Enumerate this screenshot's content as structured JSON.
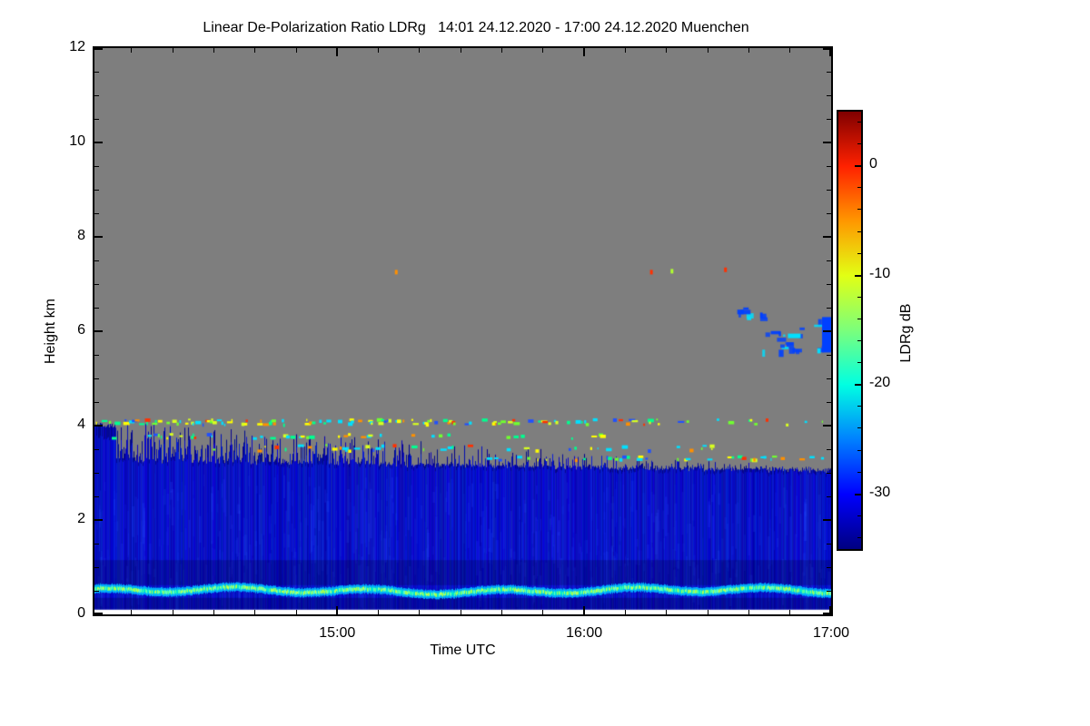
{
  "chart_data": {
    "type": "heatmap",
    "title": "Linear De-Polarization Ratio LDRg   14:01 24.12.2020 - 17:00 24.12.2020 Muenchen",
    "xlabel": "Time UTC",
    "ylabel": "Height km",
    "x_axis": {
      "start": "14:01",
      "end": "17:00",
      "duration_min": 179,
      "major_tick_labels": [
        "15:00",
        "16:00",
        "17:00"
      ],
      "major_tick_min": [
        59,
        119,
        179
      ],
      "minor_tick_every_min": 10,
      "minor_tick_offset_min": 9
    },
    "y_axis": {
      "min": 0,
      "max": 12,
      "major_step": 2,
      "minor_step": 0.5,
      "tick_labels": [
        "0",
        "2",
        "4",
        "6",
        "8",
        "10",
        "12"
      ]
    },
    "colorbar": {
      "label": "LDRg dB",
      "min": -35,
      "max": 5,
      "tick_values": [
        0,
        -10,
        -20,
        -30
      ],
      "tick_labels": [
        "0",
        "-10",
        "-20",
        "-30"
      ],
      "minor_step": 2,
      "gradient_top_to_bottom": [
        "#800000",
        "#ff2100",
        "#ff9700",
        "#e2ff14",
        "#7bff7b",
        "#00ffe2",
        "#0080ff",
        "#0000ff",
        "#000080"
      ]
    },
    "no_data_color": "#7e7e7e",
    "below_range_color": "#ffffff",
    "seed": 1337,
    "features": {
      "cloud_layer": {
        "base_km": 0.1,
        "solid_top_start_km": 3.25,
        "solid_top_end_km": 3.02,
        "spike_top_start_km": 4.12,
        "spike_top_end_km": 3.1,
        "spike_density_start": 0.95,
        "spike_density_end": 0.18,
        "body_color": "#0000c8",
        "streak_color": "#2850ff",
        "dark_color": "#00005a"
      },
      "surface_layer": {
        "center_km": 0.5,
        "thickness_km": 0.18,
        "edge_color": "#00b4ff",
        "core_colors": [
          "#00e8d0",
          "#50ffa0",
          "#a0ff50",
          "#60ffc0"
        ],
        "hot_color": "#c8ff50",
        "waviness_km": 0.05
      },
      "speckle_bands": [
        {
          "h_km": 4.1,
          "jitter_km": 0.06,
          "t0": 0,
          "t1": 179,
          "density": [
            0.8,
            0.2
          ]
        },
        {
          "h_km": 3.8,
          "jitter_km": 0.05,
          "t0": 0,
          "t1": 125,
          "density": [
            0.35,
            0.15
          ]
        },
        {
          "h_km": 3.55,
          "jitter_km": 0.06,
          "t0": 20,
          "t1": 150,
          "density": [
            0.3,
            0.3
          ]
        },
        {
          "h_km": 3.33,
          "jitter_km": 0.04,
          "t0": 95,
          "t1": 179,
          "density": [
            0.5,
            0.35
          ]
        }
      ],
      "speckle_palette": [
        "#00e0ff",
        "#00ff90",
        "#70ff30",
        "#d8ff20",
        "#ffff00",
        "#ff9000",
        "#ff3000",
        "#2050ff"
      ],
      "speckle_weights": [
        0.25,
        0.14,
        0.12,
        0.12,
        0.12,
        0.08,
        0.06,
        0.11
      ],
      "high_specks": [
        {
          "t_min": 73,
          "h_km": 7.3,
          "color": "#ff9000"
        },
        {
          "t_min": 135,
          "h_km": 7.3,
          "color": "#ff3000"
        },
        {
          "t_min": 140,
          "h_km": 7.32,
          "color": "#b0ff30"
        },
        {
          "t_min": 153,
          "h_km": 7.35,
          "color": "#ff3000"
        }
      ],
      "detached_cloud": {
        "main_color": "#0040ff",
        "core_color": "#00e0ff",
        "blob_count": 30,
        "clusters": [
          {
            "t0": 162,
            "t1": 172,
            "h0": 5.6,
            "h1": 6.1,
            "weight": 0.55
          },
          {
            "t0": 155,
            "t1": 163,
            "h0": 6.2,
            "h1": 6.55,
            "weight": 0.25
          },
          {
            "t0": 174,
            "t1": 179,
            "h0": 5.55,
            "h1": 6.6,
            "weight": 0.2
          }
        ],
        "edge_column": {
          "t0": 176.8,
          "t1": 179,
          "h0": 5.55,
          "h1": 6.3
        }
      }
    }
  }
}
